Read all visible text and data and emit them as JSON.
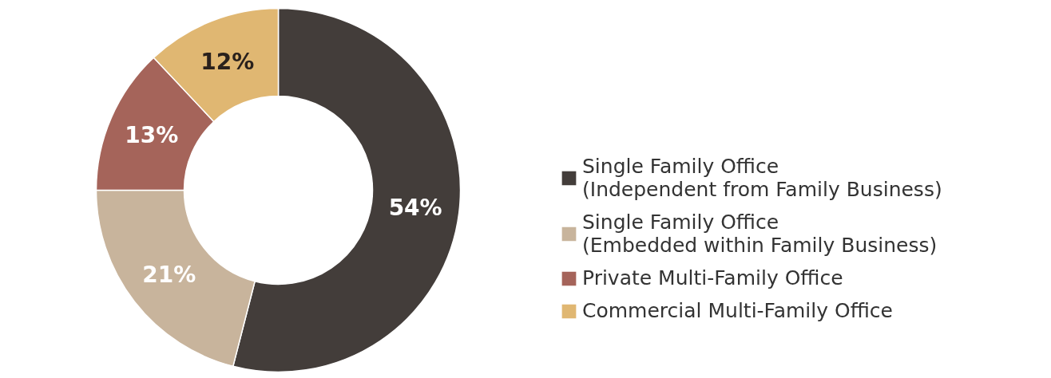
{
  "chart_data": {
    "type": "donut",
    "categories": [
      "Single Family Office\n(Independent from Family Business)",
      "Single Family Office\n(Embedded within Family Business)",
      "Private Multi-Family Office",
      "Commercial Multi-Family Office"
    ],
    "values": [
      54,
      21,
      13,
      12
    ],
    "value_labels": [
      "54%",
      "21%",
      "13%",
      "12%"
    ],
    "colors": [
      "#433d3a",
      "#c8b49c",
      "#a5645a",
      "#e0b772"
    ],
    "legend": "right"
  }
}
